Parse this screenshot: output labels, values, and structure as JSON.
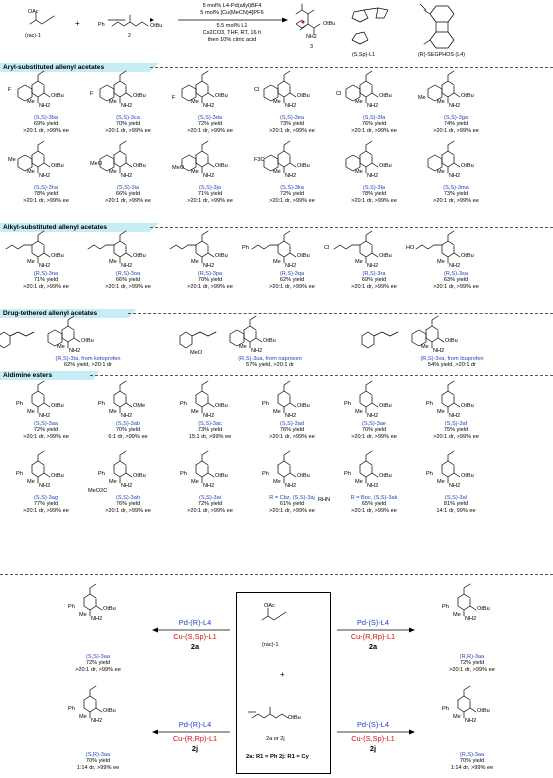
{
  "header": {
    "racemate_label": "(rac)-1",
    "reagent2_label": "2",
    "plus": "+",
    "product_label": "3",
    "ligand1_label": "(S,Sp)-L1",
    "ligand4_label": "(R)-SEGPHOS (L4)",
    "conditions": [
      "5 mol% L4-Pd(allyl)BF4",
      "5 mol% [Cu(MeCN)4]PF6",
      "5.5 mol% L1",
      "Cs2CO3, THF, RT, 16 h",
      "then 10% citric acid"
    ]
  },
  "sections": {
    "aryl": "Aryl-substituted allenyl acetates",
    "alkyl": "Alkyl-substituted allenyl acetates",
    "drug": "Drug-tethered allenyl acetates",
    "aldimine": "Aldimine esters"
  },
  "aryl_entries": [
    {
      "id": "(S,S)-3ba",
      "yield": "69% yield",
      "sel": ">20:1 dr, >99% ee"
    },
    {
      "id": "(S,S)-3ca",
      "yield": "70% yield",
      "sel": ">20:1 dr, >99% ee"
    },
    {
      "id": "(S,S)-3da",
      "yield": "72% yield",
      "sel": ">20:1 dr, >99% ee"
    },
    {
      "id": "(S,S)-3ea",
      "yield": "73% yield",
      "sel": ">20:1 dr, >99% ee"
    },
    {
      "id": "(S,S)-3fa",
      "yield": "76% yield",
      "sel": ">20:1 dr, >99% ee"
    },
    {
      "id": "(S,S)-3ga",
      "yield": "74% yield",
      "sel": ">20:1 dr, >99% ee"
    },
    {
      "id": "(S,S)-3ha",
      "yield": "78% yield",
      "sel": ">20:1 dr, >99% ee"
    },
    {
      "id": "(S,S)-3ia",
      "yield": "66% yield",
      "sel": ">20:1 dr, >99% ee"
    },
    {
      "id": "(S,S)-3ja",
      "yield": "71% yield",
      "sel": ">20:1 dr, >99% ee"
    },
    {
      "id": "(S,S)-3ka",
      "yield": "72% yield",
      "sel": ">20:1 dr, >99% ee"
    },
    {
      "id": "(S,S)-3la",
      "yield": "78% yield",
      "sel": ">20:1 dr, >99% ee"
    },
    {
      "id": "(S,S)-3ma",
      "yield": "73% yield",
      "sel": ">20:1 dr, >99% ee"
    }
  ],
  "aryl_subst": [
    "F",
    "F",
    "F",
    "Cl",
    "Cl",
    "Me",
    "Me",
    "MeO",
    "MeO",
    "F3C",
    "",
    ""
  ],
  "alkyl_entries": [
    {
      "id": "(R,S)-3na",
      "yield": "71% yield",
      "sel": ">20:1 dr, >99% ee"
    },
    {
      "id": "(R,S)-3oa",
      "yield": "66% yield",
      "sel": ">20:1 dr, >99% ee"
    },
    {
      "id": "(R,S)-3pa",
      "yield": "70% yield",
      "sel": ">20:1 dr, >99% ee"
    },
    {
      "id": "(R,S)-3qa",
      "yield": "62% yield",
      "sel": ">20:1 dr, >99% ee"
    },
    {
      "id": "(R,S)-3ra",
      "yield": "69% yield",
      "sel": ">20:1 dr, >99% ee"
    },
    {
      "id": "(R,S)-3sa",
      "yield": "63% yield",
      "sel": ">20:1 dr, >99% ee"
    }
  ],
  "alkyl_subst": [
    "",
    "",
    "",
    "Ph",
    "Cl",
    "HO"
  ],
  "drug_entries": [
    {
      "id": "(R,S)-3ta, from ketoprofen",
      "yield": "62% yield, >20:1 dr"
    },
    {
      "id": "(R,S)-3ua, from naproxen",
      "yield": "57% yield, >20:1 dr"
    },
    {
      "id": "(R,S)-3va, from ibuprofen",
      "yield": "54% yield, >20:1 dr"
    }
  ],
  "drug_subst": [
    "MeO"
  ],
  "ald_entries_row1": [
    {
      "id": "(S,S)-3aa",
      "yield": "72% yield",
      "sel": ">20:1 dr, >99% ee"
    },
    {
      "id": "(S,S)-3ab",
      "yield": "70% yield",
      "sel": "6:1 dr, >99% ee"
    },
    {
      "id": "(S,S)-3ac",
      "yield": "73% yield",
      "sel": "15:1 dr, >99% ee"
    },
    {
      "id": "(S,S)-3ad",
      "yield": "76% yield",
      "sel": ">20:1 dr, >99% ee"
    },
    {
      "id": "(S,S)-3ae",
      "yield": "70% yield",
      "sel": ">20:1 dr, >99% ee"
    },
    {
      "id": "(S,S)-3af",
      "yield": "75% yield",
      "sel": ">20:1 dr, >99% ee"
    }
  ],
  "ald_entries_row2": [
    {
      "id": "(S,S)-3ag",
      "yield": "77% yield",
      "sel": ">20:1 dr, >99% ee"
    },
    {
      "id": "(S,S)-3ah",
      "yield": "76% yield",
      "sel": ">20:1 dr, >99% ee"
    },
    {
      "id": "(S,S)-3ai",
      "yield": "72% yield",
      "sel": ">20:1 dr, >99% ee"
    },
    {
      "id": "R = Cbz, (S,S)-3aj",
      "yield": "61% yield",
      "sel": ">20:1 dr, >99% ee"
    },
    {
      "id": "R = Boc, (S,S)-3ak",
      "yield": "65% yield",
      "sel": ">20:1 dr, >99% ee"
    },
    {
      "id": "(S,S)-3al",
      "yield": "81% yield",
      "sel": "14:1 dr, 99% ee"
    }
  ],
  "atoms": {
    "nh2": "NH2",
    "me": "Me",
    "ph": "Ph",
    "obu": "OtBu",
    "ome": "OMe",
    "oac": "OAc",
    "rhn": "RHN",
    "meo2c": "MeO2C",
    "meo": "MeO"
  },
  "bottom": {
    "center_rac": "(rac)-1",
    "center_reagent": "2a or 2j",
    "center_note": "2a: R1 = Ph  2j: R1 = Cy",
    "tl": {
      "cat1": "Pd-(R)-L4",
      "cat2": "Cu-(S,Sp)-L1",
      "sub": "2a",
      "id": "(S,S)-3aa",
      "yield": "72% yield",
      "sel": ">20:1 dr, >99% ee"
    },
    "tr": {
      "cat1": "Pd-(S)-L4",
      "cat2": "Cu-(R,Rp)-L1",
      "sub": "2a",
      "id": "(R,R)-3aa",
      "yield": "72% yield",
      "sel": ">20:1 dr, >99% ee"
    },
    "bl": {
      "cat1": "Pd-(R)-L4",
      "cat2": "Cu-(R,Rp)-L1",
      "sub": "2j",
      "id": "(S,R)-3aa",
      "yield": "70% yield",
      "sel": "1:14 dr, >99% ee"
    },
    "br": {
      "cat1": "Pd-(S)-L4",
      "cat2": "Cu-(S,Sp)-L1",
      "sub": "2j",
      "id": "(R,S)-3aa",
      "yield": "70% yield",
      "sel": "1:14 dr, >99% ee"
    }
  }
}
